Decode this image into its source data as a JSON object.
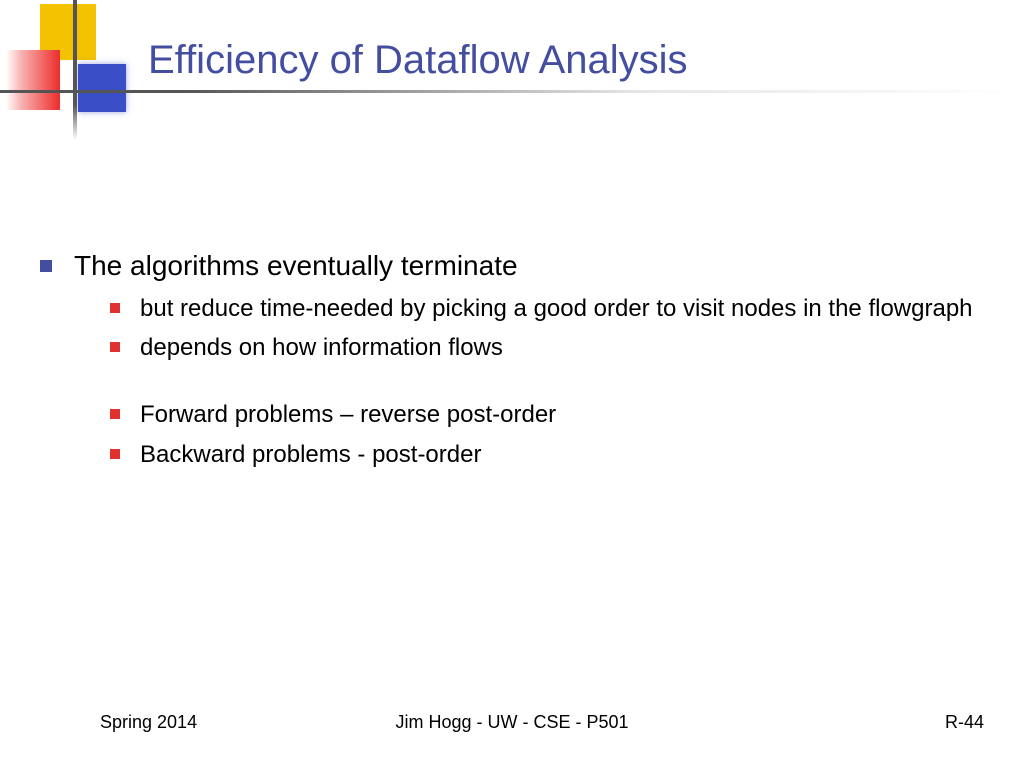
{
  "title": "Efficiency of Dataflow Analysis",
  "colors": {
    "title_text": "#444ea1",
    "body_text": "#000000",
    "bullet_l1": "#444ea1",
    "bullet_l2": "#e03030",
    "logo_yellow": "#f3c200",
    "logo_red": "#ed2c2c",
    "logo_blue": "#3a4ec8",
    "rule_line": "#555555",
    "background": "#ffffff"
  },
  "typography": {
    "title_fontsize": 40,
    "l1_fontsize": 28,
    "l2_fontsize": 24,
    "footer_fontsize": 18,
    "font_family": "Verdana"
  },
  "bullets": {
    "l1": {
      "text": "The algorithms eventually terminate",
      "sub": [
        "but reduce time-needed by picking a good order to visit nodes in the flowgraph",
        "depends on how information flows",
        "Forward problems – reverse post-order",
        "Backward problems - post-order"
      ],
      "gap_after_index": 1
    }
  },
  "footer": {
    "left": "Spring 2014",
    "center": "Jim Hogg - UW - CSE - P501",
    "right": "R-44"
  }
}
